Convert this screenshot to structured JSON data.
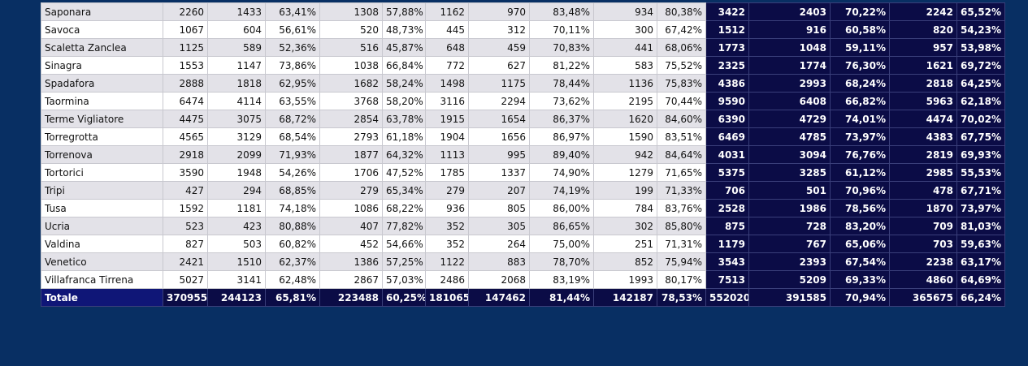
{
  "table": {
    "rows": [
      [
        "Saponara",
        "2260",
        "1433",
        "63,41%",
        "1308",
        "57,88%",
        "1162",
        "970",
        "83,48%",
        "934",
        "80,38%",
        "3422",
        "2403",
        "70,22%",
        "2242",
        "65,52%"
      ],
      [
        "Savoca",
        "1067",
        "604",
        "56,61%",
        "520",
        "48,73%",
        "445",
        "312",
        "70,11%",
        "300",
        "67,42%",
        "1512",
        "916",
        "60,58%",
        "820",
        "54,23%"
      ],
      [
        "Scaletta Zanclea",
        "1125",
        "589",
        "52,36%",
        "516",
        "45,87%",
        "648",
        "459",
        "70,83%",
        "441",
        "68,06%",
        "1773",
        "1048",
        "59,11%",
        "957",
        "53,98%"
      ],
      [
        "Sinagra",
        "1553",
        "1147",
        "73,86%",
        "1038",
        "66,84%",
        "772",
        "627",
        "81,22%",
        "583",
        "75,52%",
        "2325",
        "1774",
        "76,30%",
        "1621",
        "69,72%"
      ],
      [
        "Spadafora",
        "2888",
        "1818",
        "62,95%",
        "1682",
        "58,24%",
        "1498",
        "1175",
        "78,44%",
        "1136",
        "75,83%",
        "4386",
        "2993",
        "68,24%",
        "2818",
        "64,25%"
      ],
      [
        "Taormina",
        "6474",
        "4114",
        "63,55%",
        "3768",
        "58,20%",
        "3116",
        "2294",
        "73,62%",
        "2195",
        "70,44%",
        "9590",
        "6408",
        "66,82%",
        "5963",
        "62,18%"
      ],
      [
        "Terme Vigliatore",
        "4475",
        "3075",
        "68,72%",
        "2854",
        "63,78%",
        "1915",
        "1654",
        "86,37%",
        "1620",
        "84,60%",
        "6390",
        "4729",
        "74,01%",
        "4474",
        "70,02%"
      ],
      [
        "Torregrotta",
        "4565",
        "3129",
        "68,54%",
        "2793",
        "61,18%",
        "1904",
        "1656",
        "86,97%",
        "1590",
        "83,51%",
        "6469",
        "4785",
        "73,97%",
        "4383",
        "67,75%"
      ],
      [
        "Torrenova",
        "2918",
        "2099",
        "71,93%",
        "1877",
        "64,32%",
        "1113",
        "995",
        "89,40%",
        "942",
        "84,64%",
        "4031",
        "3094",
        "76,76%",
        "2819",
        "69,93%"
      ],
      [
        "Tortorici",
        "3590",
        "1948",
        "54,26%",
        "1706",
        "47,52%",
        "1785",
        "1337",
        "74,90%",
        "1279",
        "71,65%",
        "5375",
        "3285",
        "61,12%",
        "2985",
        "55,53%"
      ],
      [
        "Tripi",
        "427",
        "294",
        "68,85%",
        "279",
        "65,34%",
        "279",
        "207",
        "74,19%",
        "199",
        "71,33%",
        "706",
        "501",
        "70,96%",
        "478",
        "67,71%"
      ],
      [
        "Tusa",
        "1592",
        "1181",
        "74,18%",
        "1086",
        "68,22%",
        "936",
        "805",
        "86,00%",
        "784",
        "83,76%",
        "2528",
        "1986",
        "78,56%",
        "1870",
        "73,97%"
      ],
      [
        "Ucria",
        "523",
        "423",
        "80,88%",
        "407",
        "77,82%",
        "352",
        "305",
        "86,65%",
        "302",
        "85,80%",
        "875",
        "728",
        "83,20%",
        "709",
        "81,03%"
      ],
      [
        "Valdina",
        "827",
        "503",
        "60,82%",
        "452",
        "54,66%",
        "352",
        "264",
        "75,00%",
        "251",
        "71,31%",
        "1179",
        "767",
        "65,06%",
        "703",
        "59,63%"
      ],
      [
        "Venetico",
        "2421",
        "1510",
        "62,37%",
        "1386",
        "57,25%",
        "1122",
        "883",
        "78,70%",
        "852",
        "75,94%",
        "3543",
        "2393",
        "67,54%",
        "2238",
        "63,17%"
      ],
      [
        "Villafranca Tirrena",
        "5027",
        "3141",
        "62,48%",
        "2867",
        "57,03%",
        "2486",
        "2068",
        "83,19%",
        "1993",
        "80,17%",
        "7513",
        "5209",
        "69,33%",
        "4860",
        "64,69%"
      ]
    ],
    "total": [
      "Totale",
      "370955",
      "244123",
      "65,81%",
      "223488",
      "60,25%",
      "181065",
      "147462",
      "81,44%",
      "142187",
      "78,53%",
      "552020",
      "391585",
      "70,94%",
      "365675",
      "66,24%"
    ]
  }
}
